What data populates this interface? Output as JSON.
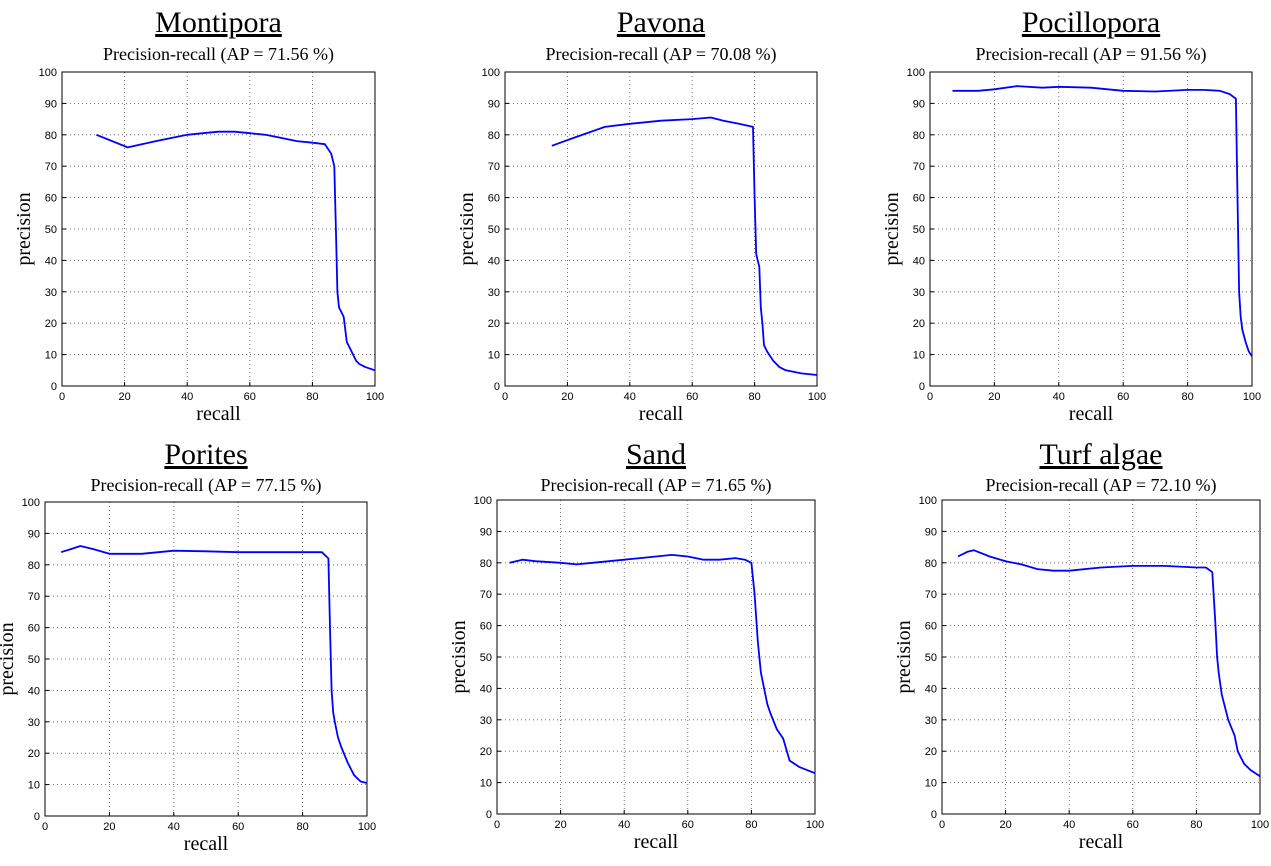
{
  "axes": {
    "xlabel": "recall",
    "ylabel": "precision",
    "xlim": [
      0,
      100
    ],
    "ylim": [
      0,
      100
    ],
    "xticks": [
      0,
      20,
      40,
      60,
      80,
      100
    ],
    "yticks": [
      0,
      10,
      20,
      30,
      40,
      50,
      60,
      70,
      80,
      90,
      100
    ],
    "grid": true
  },
  "colors": {
    "line": "#0000ff",
    "grid": "#555555",
    "axes": "#000000",
    "background": "#ffffff"
  },
  "chart_data": [
    {
      "type": "line",
      "species": "Montipora",
      "title": "Precision-recall (AP = 71.56 %)",
      "xlabel": "recall",
      "ylabel": "precision",
      "xlim": [
        0,
        100
      ],
      "ylim": [
        0,
        100
      ],
      "grid": true,
      "series": [
        {
          "x": [
            11,
            21,
            30,
            40,
            45,
            50,
            55,
            60,
            65,
            70,
            75,
            80,
            84,
            86,
            87,
            87.5,
            88,
            88.5,
            89,
            90,
            91,
            92,
            93,
            94,
            95,
            97,
            100
          ],
          "y": [
            80,
            76,
            78,
            80,
            80.5,
            81,
            81,
            80.5,
            80,
            79,
            78,
            77.5,
            77,
            74,
            70,
            50,
            30,
            25,
            24,
            22,
            14,
            12,
            10,
            8,
            7,
            6,
            5
          ]
        }
      ]
    },
    {
      "type": "line",
      "species": "Pavona",
      "title": "Precision-recall (AP = 70.08 %)",
      "xlabel": "recall",
      "ylabel": "precision",
      "xlim": [
        0,
        100
      ],
      "ylim": [
        0,
        100
      ],
      "grid": true,
      "series": [
        {
          "x": [
            15,
            22,
            32,
            40,
            50,
            60,
            66,
            70,
            75,
            79.5,
            80,
            80.5,
            81,
            81.5,
            82,
            82.5,
            83,
            84,
            86,
            88,
            90,
            95,
            100
          ],
          "y": [
            76.5,
            79,
            82.5,
            83.5,
            84.5,
            85,
            85.5,
            84.5,
            83.5,
            82.5,
            60,
            42,
            40,
            38,
            25,
            20,
            13,
            11,
            8,
            6,
            5,
            4,
            3.5
          ]
        }
      ]
    },
    {
      "type": "line",
      "species": "Pocillopora",
      "title": "Precision-recall (AP = 91.56 %)",
      "xlabel": "recall",
      "ylabel": "precision",
      "xlim": [
        0,
        100
      ],
      "ylim": [
        0,
        100
      ],
      "grid": true,
      "series": [
        {
          "x": [
            7,
            15,
            20,
            27,
            35,
            40,
            50,
            60,
            70,
            80,
            85,
            90,
            93,
            95,
            95.5,
            96,
            96.5,
            97,
            98,
            99,
            100
          ],
          "y": [
            94,
            94,
            94.5,
            95.5,
            95,
            95.3,
            95,
            94,
            93.8,
            94.3,
            94.3,
            94,
            93,
            91.5,
            60,
            30,
            22,
            18,
            14,
            11,
            9.5
          ]
        }
      ]
    },
    {
      "type": "line",
      "species": "Porites",
      "title": "Precision-recall (AP = 77.15 %)",
      "xlabel": "recall",
      "ylabel": "precision",
      "xlim": [
        0,
        100
      ],
      "ylim": [
        0,
        100
      ],
      "grid": true,
      "series": [
        {
          "x": [
            5,
            8,
            11,
            15,
            20,
            25,
            30,
            40,
            50,
            60,
            70,
            80,
            86,
            88,
            88.5,
            89,
            89.5,
            90,
            91,
            92,
            94,
            96,
            98,
            100
          ],
          "y": [
            84,
            85,
            86,
            85,
            83.5,
            83.5,
            83.5,
            84.5,
            84.3,
            84,
            84,
            84,
            84,
            82,
            60,
            40,
            33,
            30,
            25,
            22,
            17,
            13,
            11,
            10.5
          ]
        }
      ]
    },
    {
      "type": "line",
      "species": "Sand",
      "title": "Precision-recall (AP = 71.65 %)",
      "xlabel": "recall",
      "ylabel": "precision",
      "xlim": [
        0,
        100
      ],
      "ylim": [
        0,
        100
      ],
      "grid": true,
      "series": [
        {
          "x": [
            4,
            8,
            12,
            20,
            25,
            30,
            40,
            45,
            50,
            55,
            60,
            65,
            70,
            75,
            78,
            80,
            81,
            82,
            83,
            84,
            85,
            86,
            88,
            90,
            92,
            95,
            100
          ],
          "y": [
            80,
            81,
            80.5,
            80,
            79.5,
            80,
            81,
            81.5,
            82,
            82.5,
            82,
            81,
            81,
            81.5,
            81,
            80,
            70,
            55,
            45,
            40,
            35,
            32,
            27,
            24,
            17,
            15,
            13
          ]
        }
      ]
    },
    {
      "type": "line",
      "species": "Turf algae",
      "title": "Precision-recall (AP = 72.10 %)",
      "xlabel": "recall",
      "ylabel": "precision",
      "xlim": [
        0,
        100
      ],
      "ylim": [
        0,
        100
      ],
      "grid": true,
      "series": [
        {
          "x": [
            5,
            8,
            10,
            15,
            20,
            25,
            30,
            35,
            40,
            50,
            60,
            70,
            80,
            83,
            85,
            86,
            86.5,
            87,
            88,
            89,
            90,
            92,
            93,
            95,
            97,
            100
          ],
          "y": [
            82,
            83.5,
            84,
            82,
            80.5,
            79.5,
            78,
            77.5,
            77.5,
            78.5,
            79,
            79,
            78.5,
            78.5,
            77,
            60,
            50,
            45,
            38,
            34,
            30,
            25,
            20,
            16,
            14,
            12
          ]
        }
      ]
    }
  ]
}
